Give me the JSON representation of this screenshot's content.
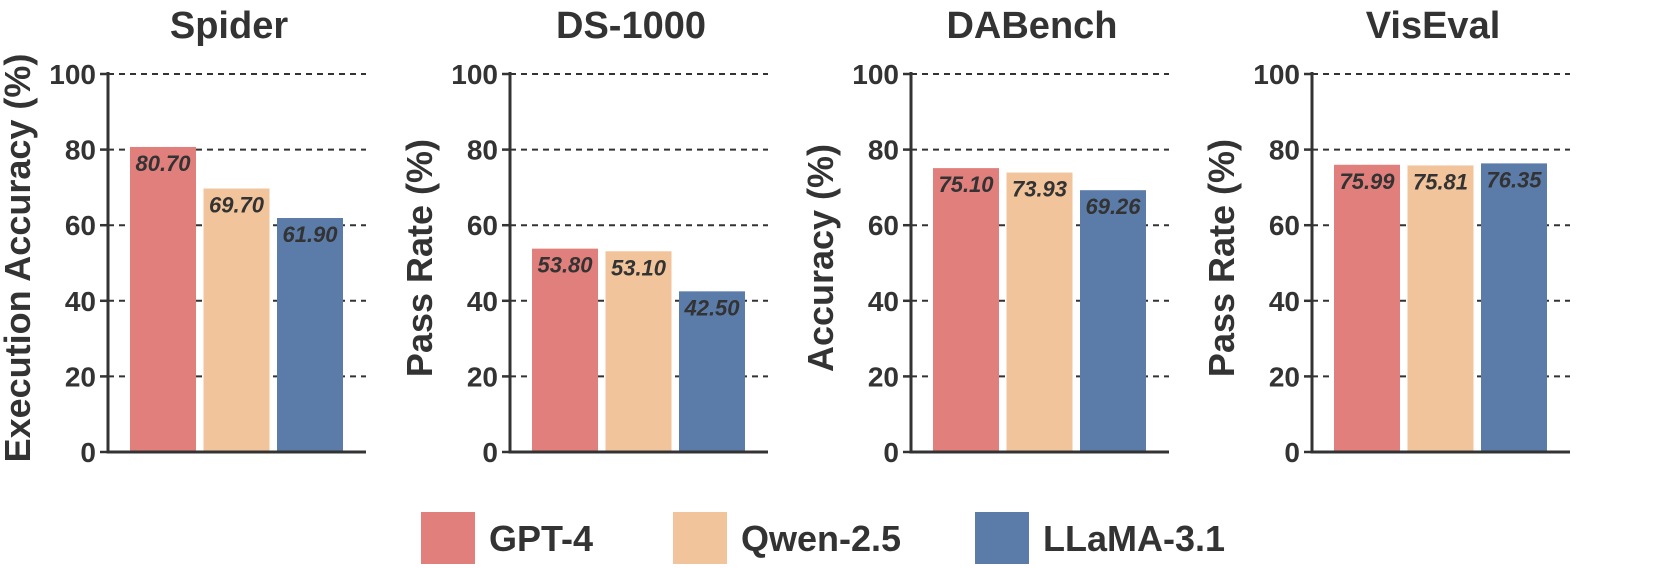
{
  "chart_data": [
    {
      "type": "bar",
      "title": "Spider",
      "ylabel": "Execution Accuracy (%)",
      "xlabel": "",
      "categories": [
        "GPT-4",
        "Qwen-2.5",
        "LLaMA-3.1"
      ],
      "values": [
        80.7,
        69.7,
        61.9
      ],
      "value_labels": [
        "80.70",
        "69.70",
        "61.90"
      ],
      "ylim": [
        0,
        100
      ],
      "yticks": [
        "0",
        "20",
        "40",
        "60",
        "80",
        "100"
      ],
      "grid": true
    },
    {
      "type": "bar",
      "title": "DS-1000",
      "ylabel": "Pass Rate (%)",
      "xlabel": "",
      "categories": [
        "GPT-4",
        "Qwen-2.5",
        "LLaMA-3.1"
      ],
      "values": [
        53.8,
        53.1,
        42.5
      ],
      "value_labels": [
        "53.80",
        "53.10",
        "42.50"
      ],
      "ylim": [
        0,
        100
      ],
      "yticks": [
        "0",
        "20",
        "40",
        "60",
        "80",
        "100"
      ],
      "grid": true
    },
    {
      "type": "bar",
      "title": "DABench",
      "ylabel": "Accuracy (%)",
      "xlabel": "",
      "categories": [
        "GPT-4",
        "Qwen-2.5",
        "LLaMA-3.1"
      ],
      "values": [
        75.1,
        73.93,
        69.26
      ],
      "value_labels": [
        "75.10",
        "73.93",
        "69.26"
      ],
      "ylim": [
        0,
        100
      ],
      "yticks": [
        "0",
        "20",
        "40",
        "60",
        "80",
        "100"
      ],
      "grid": true
    },
    {
      "type": "bar",
      "title": "VisEval",
      "ylabel": "Pass Rate (%)",
      "xlabel": "",
      "categories": [
        "GPT-4",
        "Qwen-2.5",
        "LLaMA-3.1"
      ],
      "values": [
        75.99,
        75.81,
        76.35
      ],
      "value_labels": [
        "75.99",
        "75.81",
        "76.35"
      ],
      "ylim": [
        0,
        100
      ],
      "yticks": [
        "0",
        "20",
        "40",
        "60",
        "80",
        "100"
      ],
      "grid": true
    }
  ],
  "legend": {
    "position": "bottom-center",
    "items": [
      {
        "label": "GPT-4",
        "color": "#e07f7c"
      },
      {
        "label": "Qwen-2.5",
        "color": "#f2c49b"
      },
      {
        "label": "LLaMA-3.1",
        "color": "#5b7ba8"
      }
    ]
  },
  "colors": {
    "axis": "#333333",
    "grid": "#333333",
    "text": "#333333",
    "value_label": "#333333"
  }
}
